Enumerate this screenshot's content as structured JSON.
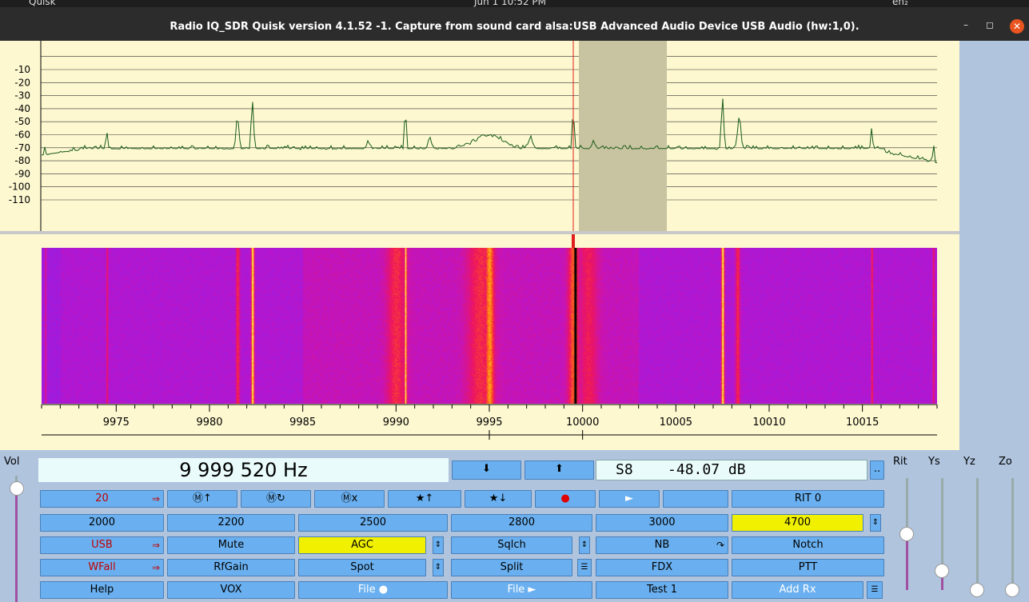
{
  "system_bar": {
    "app_menu": "Quisk",
    "clock": "Jun 1  10:52 PM",
    "keyboard": "en₂"
  },
  "window": {
    "title": "Radio IQ_SDR   Quisk version 4.1.52   -1. Capture from sound card alsa:USB Advanced Audio Device USB Audio (hw:1,0)."
  },
  "graph": {
    "db_labels": [
      "-10",
      "-20",
      "-30",
      "-40",
      "-50",
      "-60",
      "-70",
      "-80",
      "-90",
      "-100",
      "-110"
    ],
    "freq_labels": [
      "9975",
      "9980",
      "9985",
      "9990",
      "9995",
      "10000",
      "10005",
      "10010",
      "10015"
    ]
  },
  "display": {
    "frequency": "9 999 520 Hz",
    "smeter": "S8    -48.07 dB",
    "down_arrow": "⬇",
    "up_arrow": "⬆",
    "more": ".."
  },
  "labels": {
    "vol": "Vol",
    "rit": "Rit",
    "ys": "Ys",
    "yz": "Yz",
    "zo": "Zo"
  },
  "rows": {
    "row1": {
      "band": "20",
      "mem_up": "Ⓜ↑",
      "mem_recall": "Ⓜ↻",
      "mem_delete": "Ⓜx",
      "fav_up": "★↑",
      "fav_down": "★↓",
      "record": "●",
      "play": "►",
      "rit": "RIT 0"
    },
    "row2": {
      "bw": [
        "2000",
        "2200",
        "2500",
        "2800",
        "3000",
        "4700"
      ]
    },
    "row3": {
      "mode": "USB",
      "mute": "Mute",
      "agc": "AGC",
      "sqlch": "Sqlch",
      "nb": "NB",
      "notch": "Notch"
    },
    "row4": {
      "wfall": "WFall",
      "rfgain": "RfGain",
      "spot": "Spot",
      "split": "Split",
      "fdx": "FDX",
      "ptt": "PTT"
    },
    "row5": {
      "help": "Help",
      "vox": "VOX",
      "file_rec": "File ●",
      "file_play": "File ►",
      "test": "Test 1",
      "add_rx": "Add Rx"
    }
  },
  "sliders": {
    "vol": 0.95,
    "rit": 0.5,
    "ys": 0.17,
    "yz": 0.0,
    "zo": 0.0
  },
  "colors": {
    "background": "#b0c4de",
    "button": "#6ab0f0",
    "active_button": "#f0f000",
    "graph_bg": "#fdf8d0",
    "trace": "#1a5c1a"
  }
}
